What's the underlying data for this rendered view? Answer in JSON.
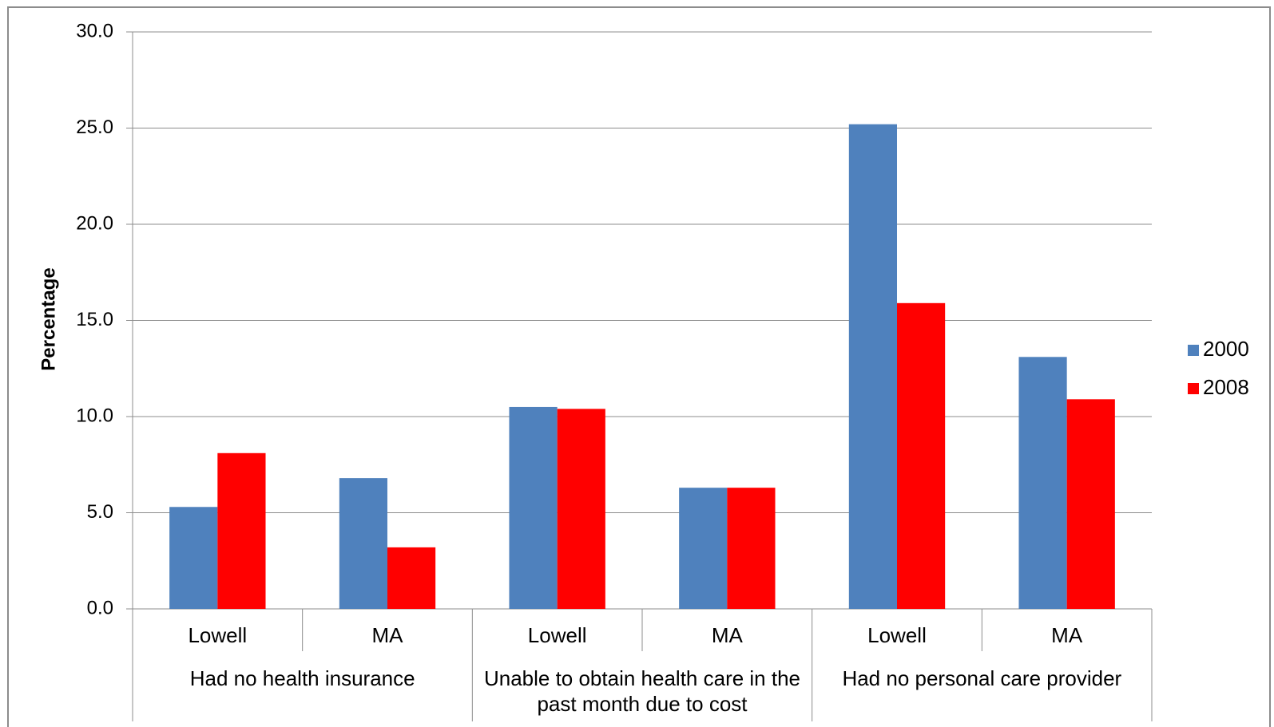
{
  "chart_data": {
    "type": "bar",
    "y_label": "Percentage",
    "categories": [
      "Lowell",
      "MA",
      "Lowell",
      "MA",
      "Lowell",
      "MA"
    ],
    "groups": [
      {
        "label": "Had no health insurance",
        "size": 2
      },
      {
        "label": "Unable to obtain health care in the past month due to cost",
        "size": 2
      },
      {
        "label": "Had no personal care provider",
        "size": 2
      }
    ],
    "series": [
      {
        "name": "2000",
        "color": "#4f81bd",
        "values": [
          5.3,
          6.8,
          10.5,
          6.3,
          25.2,
          13.1
        ]
      },
      {
        "name": "2008",
        "color": "#ff0000",
        "values": [
          8.1,
          3.2,
          10.4,
          6.3,
          15.9,
          10.9
        ]
      }
    ],
    "ylim": [
      0,
      30
    ],
    "yticks": [
      {
        "value": 0,
        "label": "0.0"
      },
      {
        "value": 5,
        "label": "5.0"
      },
      {
        "value": 10,
        "label": "10.0"
      },
      {
        "value": 15,
        "label": "15.0"
      },
      {
        "value": 20,
        "label": "20.0"
      },
      {
        "value": 25,
        "label": "25.0"
      },
      {
        "value": 30,
        "label": "30.0"
      }
    ],
    "grid": true,
    "legend": "right"
  }
}
